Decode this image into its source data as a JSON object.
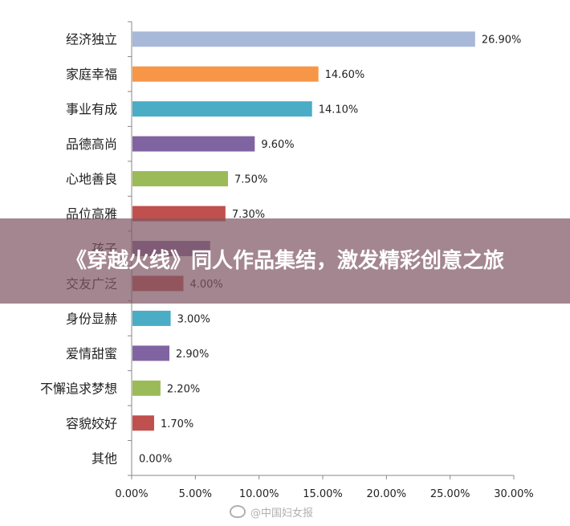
{
  "chart_data": {
    "type": "bar",
    "orientation": "horizontal",
    "categories": [
      "经济独立",
      "家庭幸福",
      "事业有成",
      "品德高尚",
      "心地善良",
      "品位高雅",
      "孩子",
      "交友广泛",
      "身份显赫",
      "爱情甜蜜",
      "不懈追求梦想",
      "容貌姣好",
      "其他"
    ],
    "values": [
      26.9,
      14.6,
      14.1,
      9.6,
      7.5,
      7.3,
      null,
      4.0,
      3.0,
      2.9,
      2.2,
      1.7,
      0.0
    ],
    "value_labels": [
      "26.90%",
      "14.60%",
      "14.10%",
      "9.60%",
      "7.50%",
      "7.30%",
      "",
      "4.00%",
      "3.00%",
      "2.90%",
      "2.20%",
      "1.70%",
      "0.00%"
    ],
    "colors": [
      "#a8b8d8",
      "#f79646",
      "#4bacc6",
      "#8064a2",
      "#9bbb59",
      "#c0504d",
      "#8064a2",
      "#c0504d",
      "#4bacc6",
      "#8064a2",
      "#9bbb59",
      "#c0504d",
      "#4f81bd"
    ],
    "xlim": [
      0,
      30
    ],
    "xticks": [
      0,
      5,
      10,
      15,
      20,
      25,
      30
    ],
    "xtick_labels": [
      "0.00%",
      "5.00%",
      "10.00%",
      "15.00%",
      "20.00%",
      "25.00%",
      "30.00%"
    ],
    "title": "",
    "xlabel": "",
    "ylabel": "",
    "grid": false,
    "legend": "none"
  },
  "overlay": {
    "title": "《穿越火线》同人作品集结，激发精彩创意之旅",
    "color": "#805864"
  },
  "watermark": {
    "text": "@中国妇女报"
  }
}
